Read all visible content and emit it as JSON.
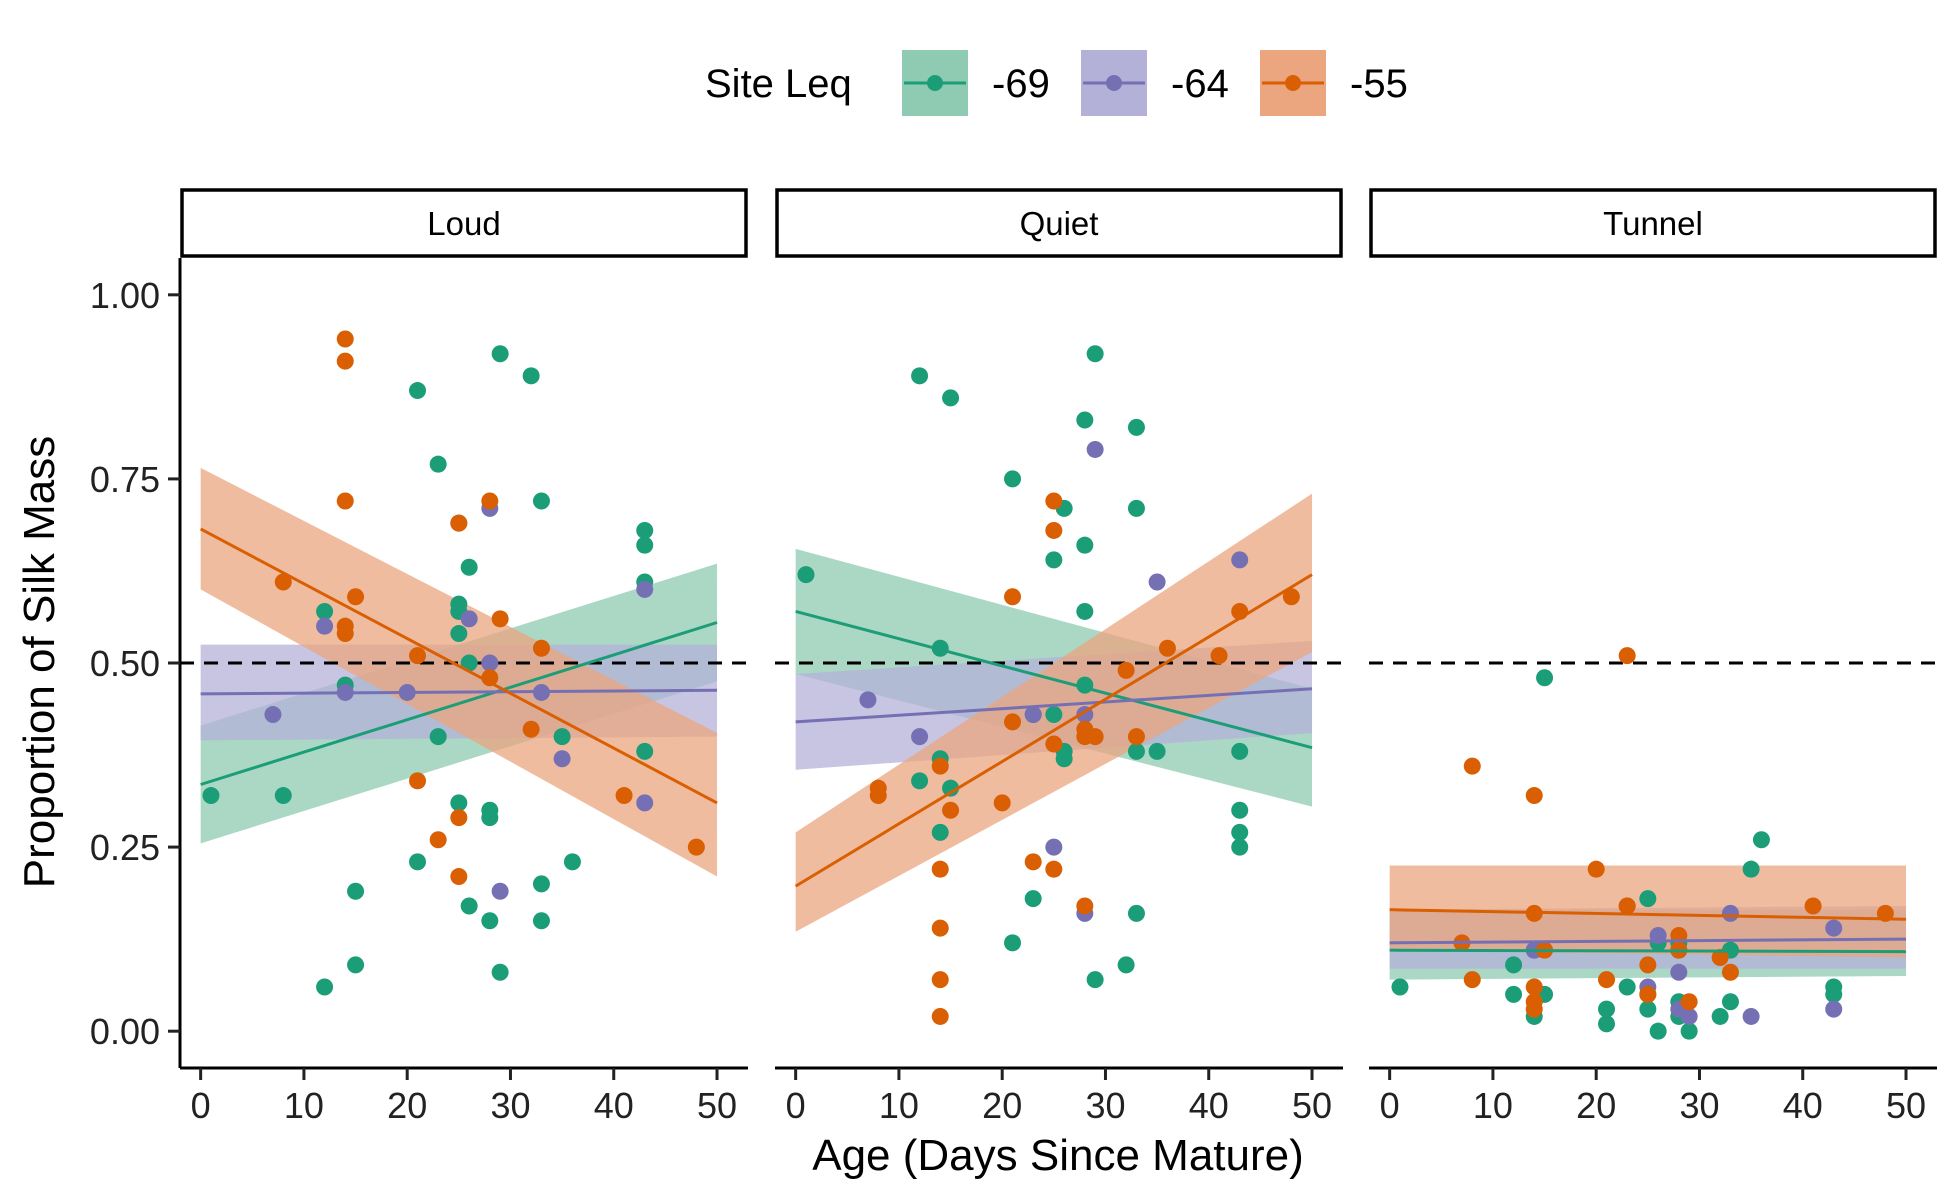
{
  "chart_data": {
    "type": "scatter",
    "xlabel": "Age (Days Since Mature)",
    "ylabel": "Proportion of Silk Mass",
    "xlim": [
      -2,
      53
    ],
    "ylim": [
      -0.05,
      1.05
    ],
    "xticks": [
      0,
      10,
      20,
      30,
      40,
      50
    ],
    "yticks": [
      "0.00",
      "0.25",
      "0.50",
      "0.75",
      "1.00"
    ],
    "reference_line": {
      "y": 0.5,
      "style": "dashed"
    },
    "legend": {
      "title": "Site Leq",
      "placement": "top",
      "entries": [
        {
          "label": "-69",
          "color": "#1b9e77",
          "fill": "#8fcab2"
        },
        {
          "label": "-64",
          "color": "#7570b3",
          "fill": "#b4b1d8"
        },
        {
          "label": "-55",
          "color": "#d95f02",
          "fill": "#eba57f"
        }
      ]
    },
    "panels": [
      {
        "label": "Loud",
        "points": {
          "-69": [
            [
              1,
              0.32
            ],
            [
              8,
              0.32
            ],
            [
              12,
              0.06
            ],
            [
              12,
              0.57
            ],
            [
              14,
              0.47
            ],
            [
              15,
              0.09
            ],
            [
              15,
              0.19
            ],
            [
              21,
              0.87
            ],
            [
              21,
              0.23
            ],
            [
              23,
              0.77
            ],
            [
              23,
              0.4
            ],
            [
              25,
              0.58
            ],
            [
              25,
              0.57
            ],
            [
              25,
              0.31
            ],
            [
              25,
              0.54
            ],
            [
              26,
              0.63
            ],
            [
              26,
              0.17
            ],
            [
              26,
              0.5
            ],
            [
              28,
              0.3
            ],
            [
              28,
              0.29
            ],
            [
              28,
              0.15
            ],
            [
              29,
              0.92
            ],
            [
              29,
              0.08
            ],
            [
              32,
              0.89
            ],
            [
              33,
              0.72
            ],
            [
              33,
              0.2
            ],
            [
              33,
              0.15
            ],
            [
              35,
              0.4
            ],
            [
              36,
              0.23
            ],
            [
              43,
              0.68
            ],
            [
              43,
              0.66
            ],
            [
              43,
              0.61
            ],
            [
              43,
              0.38
            ]
          ],
          "-64": [
            [
              7,
              0.43
            ],
            [
              12,
              0.55
            ],
            [
              14,
              0.46
            ],
            [
              20,
              0.46
            ],
            [
              25,
              0.69
            ],
            [
              26,
              0.56
            ],
            [
              28,
              0.71
            ],
            [
              28,
              0.5
            ],
            [
              29,
              0.19
            ],
            [
              33,
              0.46
            ],
            [
              35,
              0.37
            ],
            [
              43,
              0.6
            ],
            [
              43,
              0.31
            ]
          ],
          "-55": [
            [
              8,
              0.61
            ],
            [
              14,
              0.94
            ],
            [
              14,
              0.91
            ],
            [
              14,
              0.72
            ],
            [
              14,
              0.54
            ],
            [
              14,
              0.55
            ],
            [
              15,
              0.59
            ],
            [
              21,
              0.51
            ],
            [
              21,
              0.34
            ],
            [
              23,
              0.26
            ],
            [
              25,
              0.69
            ],
            [
              25,
              0.29
            ],
            [
              25,
              0.21
            ],
            [
              28,
              0.72
            ],
            [
              28,
              0.48
            ],
            [
              29,
              0.56
            ],
            [
              32,
              0.41
            ],
            [
              33,
              0.52
            ],
            [
              41,
              0.32
            ],
            [
              48,
              0.25
            ]
          ]
        },
        "fits": {
          "-69": {
            "y0": 0.335,
            "y50": 0.555,
            "band0": [
              0.255,
              0.415
            ],
            "band50": [
              0.475,
              0.635
            ]
          },
          "-64": {
            "y0": 0.458,
            "y50": 0.463,
            "band0": [
              0.395,
              0.525
            ],
            "band50": [
              0.4,
              0.525
            ]
          },
          "-55": {
            "y0": 0.682,
            "y50": 0.31,
            "band0": [
              0.6,
              0.765
            ],
            "band50": [
              0.21,
              0.405
            ]
          }
        }
      },
      {
        "label": "Quiet",
        "points": {
          "-69": [
            [
              1,
              0.62
            ],
            [
              12,
              0.89
            ],
            [
              12,
              0.34
            ],
            [
              14,
              0.52
            ],
            [
              14,
              0.37
            ],
            [
              14,
              0.27
            ],
            [
              15,
              0.86
            ],
            [
              15,
              0.33
            ],
            [
              21,
              0.75
            ],
            [
              21,
              0.12
            ],
            [
              23,
              0.43
            ],
            [
              23,
              0.18
            ],
            [
              25,
              0.64
            ],
            [
              25,
              0.43
            ],
            [
              26,
              0.71
            ],
            [
              26,
              0.38
            ],
            [
              26,
              0.37
            ],
            [
              28,
              0.83
            ],
            [
              28,
              0.66
            ],
            [
              28,
              0.57
            ],
            [
              28,
              0.47
            ],
            [
              29,
              0.92
            ],
            [
              29,
              0.07
            ],
            [
              32,
              0.09
            ],
            [
              33,
              0.82
            ],
            [
              33,
              0.71
            ],
            [
              33,
              0.38
            ],
            [
              33,
              0.16
            ],
            [
              35,
              0.38
            ],
            [
              43,
              0.3
            ],
            [
              43,
              0.27
            ],
            [
              43,
              0.25
            ],
            [
              43,
              0.38
            ]
          ],
          "-64": [
            [
              7,
              0.45
            ],
            [
              12,
              0.4
            ],
            [
              23,
              0.43
            ],
            [
              25,
              0.25
            ],
            [
              28,
              0.43
            ],
            [
              28,
              0.16
            ],
            [
              29,
              0.79
            ],
            [
              35,
              0.61
            ],
            [
              43,
              0.64
            ]
          ],
          "-55": [
            [
              8,
              0.33
            ],
            [
              8,
              0.32
            ],
            [
              14,
              0.36
            ],
            [
              14,
              0.22
            ],
            [
              14,
              0.14
            ],
            [
              14,
              0.07
            ],
            [
              14,
              0.02
            ],
            [
              15,
              0.3
            ],
            [
              20,
              0.31
            ],
            [
              21,
              0.59
            ],
            [
              21,
              0.42
            ],
            [
              23,
              0.23
            ],
            [
              25,
              0.72
            ],
            [
              25,
              0.68
            ],
            [
              25,
              0.39
            ],
            [
              25,
              0.22
            ],
            [
              28,
              0.41
            ],
            [
              28,
              0.4
            ],
            [
              28,
              0.17
            ],
            [
              29,
              0.4
            ],
            [
              32,
              0.49
            ],
            [
              33,
              0.4
            ],
            [
              36,
              0.52
            ],
            [
              41,
              0.51
            ],
            [
              43,
              0.57
            ],
            [
              48,
              0.59
            ]
          ]
        },
        "fits": {
          "-69": {
            "y0": 0.57,
            "y50": 0.385,
            "band0": [
              0.485,
              0.655
            ],
            "band50": [
              0.305,
              0.465
            ]
          },
          "-64": {
            "y0": 0.42,
            "y50": 0.465,
            "band0": [
              0.355,
              0.485
            ],
            "band50": [
              0.405,
              0.53
            ]
          },
          "-55": {
            "y0": 0.197,
            "y50": 0.62,
            "band0": [
              0.135,
              0.27
            ],
            "band50": [
              0.515,
              0.73
            ]
          }
        }
      },
      {
        "label": "Tunnel",
        "points": {
          "-69": [
            [
              1,
              0.06
            ],
            [
              12,
              0.09
            ],
            [
              12,
              0.05
            ],
            [
              14,
              0.02
            ],
            [
              14,
              0.11
            ],
            [
              15,
              0.48
            ],
            [
              15,
              0.05
            ],
            [
              21,
              0.03
            ],
            [
              21,
              0.01
            ],
            [
              23,
              0.06
            ],
            [
              25,
              0.18
            ],
            [
              25,
              0.05
            ],
            [
              25,
              0.03
            ],
            [
              26,
              0.12
            ],
            [
              26,
              0.0
            ],
            [
              28,
              0.12
            ],
            [
              28,
              0.11
            ],
            [
              28,
              0.04
            ],
            [
              28,
              0.02
            ],
            [
              29,
              0.0
            ],
            [
              32,
              0.02
            ],
            [
              33,
              0.11
            ],
            [
              33,
              0.04
            ],
            [
              35,
              0.22
            ],
            [
              36,
              0.26
            ],
            [
              43,
              0.05
            ],
            [
              43,
              0.06
            ]
          ],
          "-64": [
            [
              14,
              0.11
            ],
            [
              23,
              0.17
            ],
            [
              25,
              0.06
            ],
            [
              26,
              0.13
            ],
            [
              28,
              0.08
            ],
            [
              28,
              0.03
            ],
            [
              29,
              0.02
            ],
            [
              33,
              0.16
            ],
            [
              35,
              0.02
            ],
            [
              43,
              0.03
            ],
            [
              43,
              0.14
            ]
          ],
          "-55": [
            [
              7,
              0.12
            ],
            [
              8,
              0.36
            ],
            [
              8,
              0.07
            ],
            [
              14,
              0.32
            ],
            [
              14,
              0.16
            ],
            [
              14,
              0.06
            ],
            [
              14,
              0.04
            ],
            [
              14,
              0.03
            ],
            [
              15,
              0.11
            ],
            [
              20,
              0.22
            ],
            [
              21,
              0.07
            ],
            [
              23,
              0.51
            ],
            [
              23,
              0.17
            ],
            [
              25,
              0.09
            ],
            [
              25,
              0.05
            ],
            [
              28,
              0.13
            ],
            [
              28,
              0.11
            ],
            [
              29,
              0.04
            ],
            [
              32,
              0.1
            ],
            [
              33,
              0.08
            ],
            [
              41,
              0.17
            ],
            [
              48,
              0.16
            ]
          ]
        },
        "fits": {
          "-69": {
            "y0": 0.11,
            "y50": 0.108,
            "band0": [
              0.07,
              0.165
            ],
            "band50": [
              0.075,
              0.165
            ]
          },
          "-64": {
            "y0": 0.12,
            "y50": 0.125,
            "band0": [
              0.085,
              0.165
            ],
            "band50": [
              0.085,
              0.17
            ]
          },
          "-55": {
            "y0": 0.165,
            "y50": 0.152,
            "band0": [
              0.11,
              0.225
            ],
            "band50": [
              0.1,
              0.225
            ]
          }
        }
      }
    ]
  }
}
